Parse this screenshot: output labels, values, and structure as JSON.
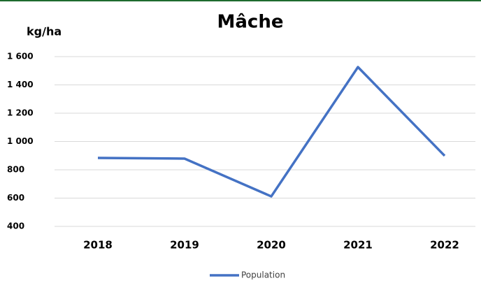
{
  "chart_data": {
    "type": "line",
    "title": "Mâche",
    "y_label": "kg/ha",
    "categories": [
      "2018",
      "2019",
      "2020",
      "2021",
      "2022"
    ],
    "series": [
      {
        "name": "Population",
        "color": "#4472c4",
        "values": [
          884,
          879,
          612,
          1526,
          899
        ]
      }
    ],
    "ylim": [
      400,
      1600
    ],
    "yticks": [
      400,
      600,
      800,
      {
        "value": 1000,
        "label": "1 000"
      },
      {
        "value": 1200,
        "label": "1 200"
      },
      {
        "value": 1400,
        "label": "1 400"
      },
      {
        "value": 1600,
        "label": "1 600"
      }
    ],
    "grid": true,
    "legend": "bottom"
  }
}
